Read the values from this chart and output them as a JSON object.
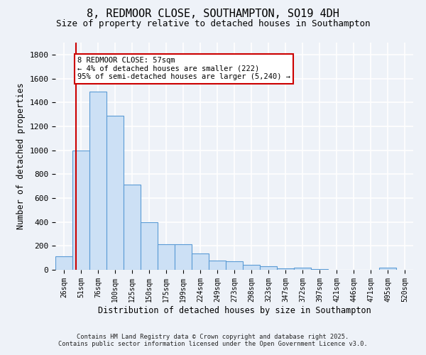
{
  "title": "8, REDMOOR CLOSE, SOUTHAMPTON, SO19 4DH",
  "subtitle": "Size of property relative to detached houses in Southampton",
  "xlabel": "Distribution of detached houses by size in Southampton",
  "ylabel": "Number of detached properties",
  "bar_labels": [
    "26sqm",
    "51sqm",
    "76sqm",
    "100sqm",
    "125sqm",
    "150sqm",
    "175sqm",
    "199sqm",
    "224sqm",
    "249sqm",
    "273sqm",
    "298sqm",
    "323sqm",
    "347sqm",
    "372sqm",
    "397sqm",
    "421sqm",
    "446sqm",
    "471sqm",
    "495sqm",
    "520sqm"
  ],
  "bar_heights": [
    110,
    1000,
    1490,
    1290,
    710,
    400,
    215,
    215,
    135,
    75,
    70,
    40,
    30,
    10,
    20,
    5,
    2,
    2,
    2,
    15,
    2
  ],
  "bar_color": "#cce0f5",
  "bar_edge_color": "#5b9bd5",
  "ylim": [
    0,
    1900
  ],
  "yticks": [
    0,
    200,
    400,
    600,
    800,
    1000,
    1200,
    1400,
    1600,
    1800
  ],
  "vline_x": 0.72,
  "vline_color": "#cc0000",
  "annotation_text": "8 REDMOOR CLOSE: 57sqm\n← 4% of detached houses are smaller (222)\n95% of semi-detached houses are larger (5,240) →",
  "annotation_box_color": "#cc0000",
  "annotation_bg": "#ffffff",
  "footer_line1": "Contains HM Land Registry data © Crown copyright and database right 2025.",
  "footer_line2": "Contains public sector information licensed under the Open Government Licence v3.0.",
  "bg_color": "#eef2f8",
  "grid_color": "#ffffff",
  "title_fontsize": 11,
  "subtitle_fontsize": 9,
  "bar_width": 1.0
}
